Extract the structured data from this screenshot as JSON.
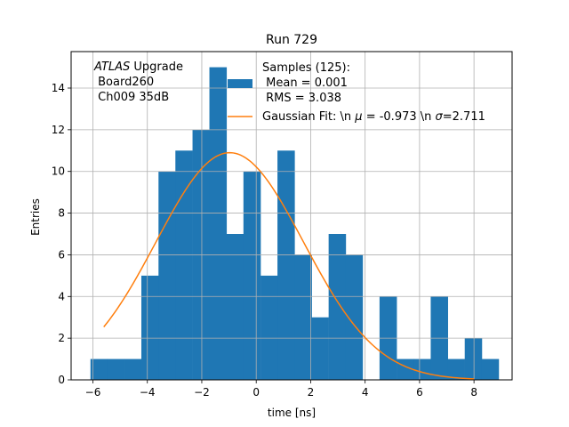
{
  "chart_data": {
    "type": "bar",
    "title": "Run 729",
    "xlabel": "time [ns]",
    "ylabel": "Entries",
    "xlim": [
      -6.8,
      9.4
    ],
    "ylim": [
      0,
      15.75
    ],
    "grid": true,
    "xticks": [
      -6,
      -4,
      -2,
      0,
      2,
      4,
      6,
      8
    ],
    "yticks": [
      0,
      2,
      4,
      6,
      8,
      10,
      12,
      14
    ],
    "bin_width": 0.625,
    "histogram": {
      "name": "Samples (125):",
      "color": "#1f77b4",
      "bins": [
        {
          "x0": -6.09,
          "count": 1
        },
        {
          "x0": -5.47,
          "count": 1
        },
        {
          "x0": -4.84,
          "count": 1
        },
        {
          "x0": -4.22,
          "count": 5
        },
        {
          "x0": -3.59,
          "count": 10
        },
        {
          "x0": -2.97,
          "count": 11
        },
        {
          "x0": -2.34,
          "count": 12
        },
        {
          "x0": -1.72,
          "count": 15
        },
        {
          "x0": -1.09,
          "count": 7
        },
        {
          "x0": -0.47,
          "count": 10
        },
        {
          "x0": 0.16,
          "count": 5
        },
        {
          "x0": 0.78,
          "count": 11
        },
        {
          "x0": 1.41,
          "count": 6
        },
        {
          "x0": 2.03,
          "count": 3
        },
        {
          "x0": 2.66,
          "count": 7
        },
        {
          "x0": 3.28,
          "count": 6
        },
        {
          "x0": 3.91,
          "count": 0
        },
        {
          "x0": 4.53,
          "count": 4
        },
        {
          "x0": 5.16,
          "count": 1
        },
        {
          "x0": 5.78,
          "count": 1
        },
        {
          "x0": 6.41,
          "count": 4
        },
        {
          "x0": 7.03,
          "count": 1
        },
        {
          "x0": 7.66,
          "count": 2
        },
        {
          "x0": 8.28,
          "count": 1
        }
      ]
    },
    "fit": {
      "name": "Gaussian Fit: \\n $\\mu$ = -0.973 \\n $\\sigma$=2.711",
      "color": "#ff7f0e",
      "mu": -0.973,
      "sigma": 2.711,
      "amplitude": 10.9,
      "x_range": [
        -5.6,
        8.0
      ]
    },
    "legend": {
      "placement": "top-right",
      "samples_label": "Samples (125):",
      "mean_label": " Mean = 0.001",
      "rms_label": " RMS = 3.038",
      "fit_label_prefix": "Gaussian Fit: \\n ",
      "fit_label_mu": "μ",
      "fit_label_middle": " = -0.973 \\n ",
      "fit_label_sigma": "σ",
      "fit_label_suffix": "=2.711"
    },
    "annotation": {
      "line1_italic": "ATLAS",
      "line1_rest": " Upgrade",
      "line2": " Board260",
      "line3": " Ch009 35dB"
    }
  }
}
